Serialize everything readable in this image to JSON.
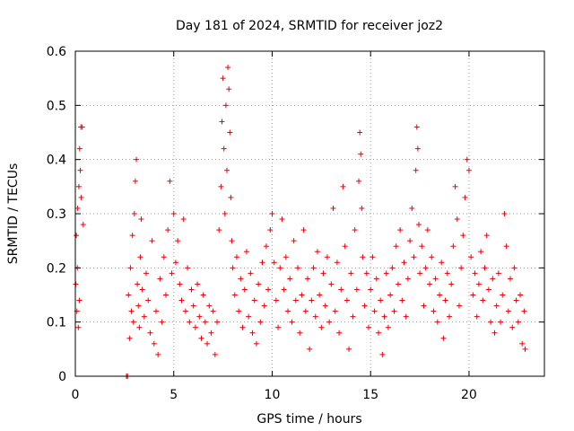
{
  "chart_data": {
    "type": "scatter",
    "title": "Day 181 of 2024, SRMTID for receiver joz2",
    "xlabel": "GPS time / hours",
    "ylabel": "SRMTID / TECUs",
    "xlim": [
      0,
      23.83
    ],
    "ylim": [
      0,
      0.6
    ],
    "x_ticks": [
      0,
      5,
      10,
      15,
      20
    ],
    "x_tick_labels": [
      "0",
      "5",
      "10",
      "15",
      "20"
    ],
    "y_ticks": [
      0,
      0.1,
      0.2,
      0.3,
      0.4,
      0.5,
      0.6
    ],
    "y_tick_labels": [
      "0",
      "0.1",
      "0.2",
      "0.3",
      "0.4",
      "0.5",
      "0.6"
    ],
    "grid": true,
    "marker": "plus",
    "color": "#e8000b",
    "series": [
      {
        "name": "SRMTID",
        "points": [
          [
            0.02,
            0.17
          ],
          [
            0.05,
            0.26
          ],
          [
            0.08,
            0.12
          ],
          [
            0.1,
            0.2
          ],
          [
            0.12,
            0.31
          ],
          [
            0.15,
            0.09
          ],
          [
            0.18,
            0.35
          ],
          [
            0.2,
            0.14
          ],
          [
            0.22,
            0.42
          ],
          [
            0.25,
            0.38
          ],
          [
            0.28,
            0.46
          ],
          [
            0.3,
            0.33
          ],
          [
            0.35,
            0.46
          ],
          [
            0.4,
            0.28
          ],
          [
            2.6,
            0.0
          ],
          [
            2.65,
            0.0
          ],
          [
            2.7,
            0.15
          ],
          [
            2.75,
            0.07
          ],
          [
            2.8,
            0.2
          ],
          [
            2.85,
            0.12
          ],
          [
            2.9,
            0.26
          ],
          [
            2.95,
            0.1
          ],
          [
            3.0,
            0.3
          ],
          [
            3.05,
            0.36
          ],
          [
            3.1,
            0.4
          ],
          [
            3.15,
            0.17
          ],
          [
            3.2,
            0.13
          ],
          [
            3.25,
            0.09
          ],
          [
            3.3,
            0.22
          ],
          [
            3.35,
            0.29
          ],
          [
            3.4,
            0.16
          ],
          [
            3.5,
            0.11
          ],
          [
            3.6,
            0.19
          ],
          [
            3.7,
            0.14
          ],
          [
            3.8,
            0.08
          ],
          [
            3.9,
            0.25
          ],
          [
            4.0,
            0.06
          ],
          [
            4.1,
            0.12
          ],
          [
            4.2,
            0.04
          ],
          [
            4.3,
            0.18
          ],
          [
            4.4,
            0.1
          ],
          [
            4.5,
            0.22
          ],
          [
            4.6,
            0.15
          ],
          [
            4.7,
            0.27
          ],
          [
            4.8,
            0.36
          ],
          [
            4.9,
            0.19
          ],
          [
            5.0,
            0.3
          ],
          [
            5.1,
            0.21
          ],
          [
            5.2,
            0.25
          ],
          [
            5.3,
            0.17
          ],
          [
            5.4,
            0.14
          ],
          [
            5.5,
            0.29
          ],
          [
            5.6,
            0.12
          ],
          [
            5.7,
            0.2
          ],
          [
            5.8,
            0.1
          ],
          [
            5.9,
            0.16
          ],
          [
            6.0,
            0.13
          ],
          [
            6.1,
            0.09
          ],
          [
            6.2,
            0.17
          ],
          [
            6.3,
            0.11
          ],
          [
            6.4,
            0.07
          ],
          [
            6.5,
            0.15
          ],
          [
            6.6,
            0.1
          ],
          [
            6.7,
            0.06
          ],
          [
            6.8,
            0.13
          ],
          [
            6.9,
            0.08
          ],
          [
            7.0,
            0.12
          ],
          [
            7.1,
            0.04
          ],
          [
            7.2,
            0.1
          ],
          [
            7.3,
            0.27
          ],
          [
            7.4,
            0.35
          ],
          [
            7.45,
            0.47
          ],
          [
            7.5,
            0.55
          ],
          [
            7.55,
            0.42
          ],
          [
            7.6,
            0.3
          ],
          [
            7.65,
            0.5
          ],
          [
            7.7,
            0.38
          ],
          [
            7.75,
            0.57
          ],
          [
            7.8,
            0.53
          ],
          [
            7.85,
            0.45
          ],
          [
            7.9,
            0.33
          ],
          [
            7.95,
            0.25
          ],
          [
            8.0,
            0.2
          ],
          [
            8.1,
            0.15
          ],
          [
            8.2,
            0.22
          ],
          [
            8.3,
            0.12
          ],
          [
            8.4,
            0.18
          ],
          [
            8.5,
            0.09
          ],
          [
            8.6,
            0.16
          ],
          [
            8.7,
            0.23
          ],
          [
            8.8,
            0.11
          ],
          [
            8.9,
            0.19
          ],
          [
            9.0,
            0.08
          ],
          [
            9.1,
            0.14
          ],
          [
            9.2,
            0.06
          ],
          [
            9.3,
            0.17
          ],
          [
            9.4,
            0.1
          ],
          [
            9.5,
            0.21
          ],
          [
            9.6,
            0.13
          ],
          [
            9.7,
            0.24
          ],
          [
            9.8,
            0.16
          ],
          [
            9.9,
            0.27
          ],
          [
            10.0,
            0.3
          ],
          [
            10.1,
            0.21
          ],
          [
            10.2,
            0.14
          ],
          [
            10.3,
            0.09
          ],
          [
            10.4,
            0.2
          ],
          [
            10.5,
            0.29
          ],
          [
            10.6,
            0.16
          ],
          [
            10.7,
            0.22
          ],
          [
            10.8,
            0.12
          ],
          [
            10.9,
            0.18
          ],
          [
            11.0,
            0.1
          ],
          [
            11.1,
            0.25
          ],
          [
            11.2,
            0.14
          ],
          [
            11.3,
            0.2
          ],
          [
            11.4,
            0.08
          ],
          [
            11.5,
            0.15
          ],
          [
            11.6,
            0.27
          ],
          [
            11.7,
            0.12
          ],
          [
            11.8,
            0.18
          ],
          [
            11.9,
            0.05
          ],
          [
            12.0,
            0.14
          ],
          [
            12.1,
            0.2
          ],
          [
            12.2,
            0.11
          ],
          [
            12.3,
            0.23
          ],
          [
            12.4,
            0.15
          ],
          [
            12.5,
            0.09
          ],
          [
            12.6,
            0.19
          ],
          [
            12.7,
            0.13
          ],
          [
            12.8,
            0.22
          ],
          [
            12.9,
            0.1
          ],
          [
            13.0,
            0.17
          ],
          [
            13.1,
            0.31
          ],
          [
            13.2,
            0.12
          ],
          [
            13.3,
            0.21
          ],
          [
            13.4,
            0.08
          ],
          [
            13.5,
            0.16
          ],
          [
            13.6,
            0.35
          ],
          [
            13.7,
            0.24
          ],
          [
            13.8,
            0.14
          ],
          [
            13.9,
            0.05
          ],
          [
            14.0,
            0.19
          ],
          [
            14.1,
            0.11
          ],
          [
            14.2,
            0.27
          ],
          [
            14.3,
            0.16
          ],
          [
            14.4,
            0.36
          ],
          [
            14.45,
            0.45
          ],
          [
            14.5,
            0.41
          ],
          [
            14.55,
            0.31
          ],
          [
            14.6,
            0.22
          ],
          [
            14.7,
            0.13
          ],
          [
            14.8,
            0.19
          ],
          [
            14.9,
            0.09
          ],
          [
            15.0,
            0.16
          ],
          [
            15.1,
            0.22
          ],
          [
            15.2,
            0.12
          ],
          [
            15.3,
            0.18
          ],
          [
            15.4,
            0.08
          ],
          [
            15.5,
            0.14
          ],
          [
            15.6,
            0.04
          ],
          [
            15.7,
            0.11
          ],
          [
            15.8,
            0.19
          ],
          [
            15.9,
            0.09
          ],
          [
            16.0,
            0.15
          ],
          [
            16.1,
            0.2
          ],
          [
            16.2,
            0.12
          ],
          [
            16.3,
            0.24
          ],
          [
            16.4,
            0.17
          ],
          [
            16.5,
            0.27
          ],
          [
            16.6,
            0.14
          ],
          [
            16.7,
            0.21
          ],
          [
            16.8,
            0.11
          ],
          [
            16.9,
            0.18
          ],
          [
            17.0,
            0.25
          ],
          [
            17.1,
            0.31
          ],
          [
            17.2,
            0.22
          ],
          [
            17.3,
            0.38
          ],
          [
            17.35,
            0.46
          ],
          [
            17.4,
            0.42
          ],
          [
            17.45,
            0.28
          ],
          [
            17.5,
            0.19
          ],
          [
            17.6,
            0.24
          ],
          [
            17.7,
            0.13
          ],
          [
            17.8,
            0.2
          ],
          [
            17.9,
            0.27
          ],
          [
            18.0,
            0.17
          ],
          [
            18.1,
            0.22
          ],
          [
            18.2,
            0.12
          ],
          [
            18.3,
            0.18
          ],
          [
            18.4,
            0.1
          ],
          [
            18.5,
            0.15
          ],
          [
            18.6,
            0.21
          ],
          [
            18.7,
            0.07
          ],
          [
            18.8,
            0.14
          ],
          [
            18.9,
            0.19
          ],
          [
            19.0,
            0.11
          ],
          [
            19.1,
            0.17
          ],
          [
            19.2,
            0.24
          ],
          [
            19.3,
            0.35
          ],
          [
            19.4,
            0.29
          ],
          [
            19.5,
            0.13
          ],
          [
            19.6,
            0.2
          ],
          [
            19.7,
            0.26
          ],
          [
            19.8,
            0.33
          ],
          [
            19.9,
            0.4
          ],
          [
            20.0,
            0.38
          ],
          [
            20.1,
            0.22
          ],
          [
            20.2,
            0.15
          ],
          [
            20.3,
            0.19
          ],
          [
            20.4,
            0.11
          ],
          [
            20.5,
            0.17
          ],
          [
            20.6,
            0.23
          ],
          [
            20.7,
            0.14
          ],
          [
            20.8,
            0.2
          ],
          [
            20.9,
            0.26
          ],
          [
            21.0,
            0.16
          ],
          [
            21.1,
            0.1
          ],
          [
            21.2,
            0.18
          ],
          [
            21.3,
            0.08
          ],
          [
            21.4,
            0.13
          ],
          [
            21.5,
            0.19
          ],
          [
            21.6,
            0.1
          ],
          [
            21.7,
            0.15
          ],
          [
            21.8,
            0.3
          ],
          [
            21.9,
            0.24
          ],
          [
            22.0,
            0.12
          ],
          [
            22.1,
            0.18
          ],
          [
            22.2,
            0.09
          ],
          [
            22.3,
            0.2
          ],
          [
            22.4,
            0.14
          ],
          [
            22.5,
            0.1
          ],
          [
            22.6,
            0.15
          ],
          [
            22.7,
            0.06
          ],
          [
            22.8,
            0.12
          ],
          [
            22.85,
            0.05
          ]
        ]
      }
    ]
  }
}
